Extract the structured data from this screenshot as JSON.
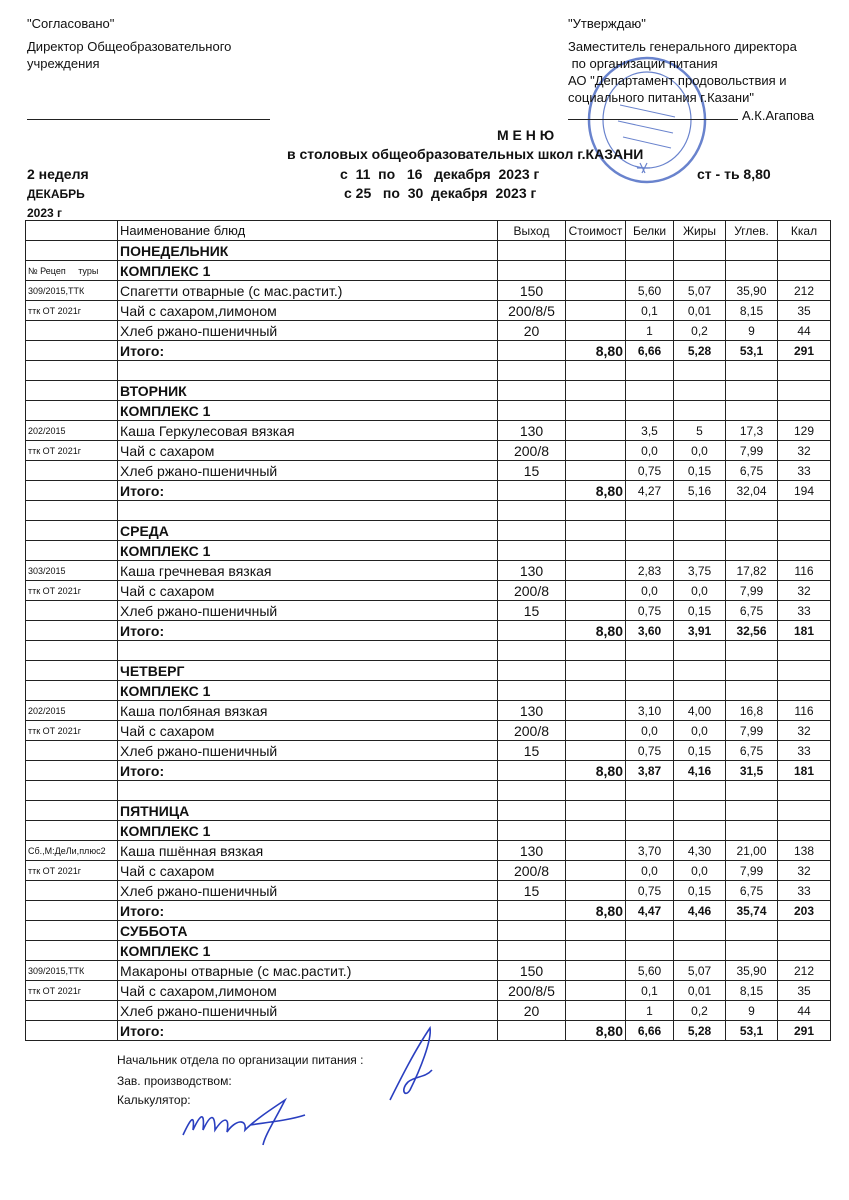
{
  "left_block": {
    "approved": "\"Согласовано\"",
    "line1": "Директор Общеобразовательного",
    "line2": "учреждения"
  },
  "right_block": {
    "approve": "\"Утверждаю\"",
    "line1": "Заместитель генерального директора",
    "line2": " по организации питания",
    "line3": "АО \"Департамент продовольствия и",
    "line4": "социального питания г.Казани\"",
    "signer": "А.К.Агапова"
  },
  "title": {
    "main": "М Е Н Ю",
    "sub": "в столовых общеобразовательных школ г.КАЗАНИ",
    "week": "2 неделя",
    "month": "ДЕКАБРЬ",
    "year": "2023 г",
    "period1": "с  11  по   16   декабря  2023 г",
    "period2": "с 25   по  30  декабря  2023 г",
    "price": "ст - ть 8,80"
  },
  "stamp": {
    "text": "ДЕПАРТАМЕНТ ПРОДОВОЛЬСТВИЯ И СОЦИАЛЬНОГО ПИТАНИЯ г.КАЗАНИ",
    "color": "#2b4fb8"
  },
  "table": {
    "headers": {
      "code": "№ Рецеп     туры",
      "name": "Наименование блюд",
      "yield": "Выход",
      "cost": "Стоимост",
      "protein": "Белки",
      "fat": "Жиры",
      "carbs": "Углев.",
      "kcal": "Ккал"
    },
    "rows": [
      {
        "type": "day",
        "name": "ПОНЕДЕЛЬНИК"
      },
      {
        "type": "complex",
        "code": "№ Рецеп     туры",
        "name": "КОМПЛЕКС 1"
      },
      {
        "type": "item",
        "code": "309/2015,ТТК",
        "name": "Спагетти отварные (с мас.растит.)",
        "yield": "150",
        "protein": "5,60",
        "fat": "5,07",
        "carbs": "35,90",
        "kcal": "212"
      },
      {
        "type": "item",
        "code": "ттк ОТ 2021г",
        "name": "Чай с сахаром,лимоном",
        "yield": "200/8/5",
        "protein": "0,1",
        "fat": "0,01",
        "carbs": "8,15",
        "kcal": "35"
      },
      {
        "type": "item",
        "name": "Хлеб ржано-пшеничный",
        "yield": "20",
        "protein": "1",
        "fat": "0,2",
        "carbs": "9",
        "kcal": "44"
      },
      {
        "type": "total",
        "name": "Итого:",
        "cost": "8,80",
        "protein": "6,66",
        "fat": "5,28",
        "carbs": "53,1",
        "kcal": "291"
      },
      {
        "type": "blank"
      },
      {
        "type": "day",
        "name": "ВТОРНИК"
      },
      {
        "type": "complex",
        "name": "КОМПЛЕКС 1"
      },
      {
        "type": "item",
        "code": "202/2015",
        "name": "Каша  Геркулесовая вязкая",
        "yield": "130",
        "protein": "3,5",
        "fat": "5",
        "carbs": "17,3",
        "kcal": "129"
      },
      {
        "type": "item",
        "code": "ттк ОТ 2021г",
        "name": "Чай с сахаром",
        "yield": "200/8",
        "protein": "0,0",
        "fat": "0,0",
        "carbs": "7,99",
        "kcal": "32"
      },
      {
        "type": "item",
        "name": "Хлеб ржано-пшеничный",
        "yield": "15",
        "protein": "0,75",
        "fat": "0,15",
        "carbs": "6,75",
        "kcal": "33"
      },
      {
        "type": "total2",
        "name": "Итого:",
        "cost": "8,80",
        "protein": "4,27",
        "fat": "5,16",
        "carbs": "32,04",
        "kcal": "194"
      },
      {
        "type": "blank"
      },
      {
        "type": "day",
        "name": "СРЕДА"
      },
      {
        "type": "complex",
        "name": "КОМПЛЕКС 1"
      },
      {
        "type": "item",
        "code": "303/2015",
        "name": "Каша гречневая вязкая",
        "yield": "130",
        "protein": "2,83",
        "fat": "3,75",
        "carbs": "17,82",
        "kcal": "116"
      },
      {
        "type": "item",
        "code": "ттк ОТ 2021г",
        "name": "Чай с сахаром",
        "yield": "200/8",
        "protein": "0,0",
        "fat": "0,0",
        "carbs": "7,99",
        "kcal": "32"
      },
      {
        "type": "item",
        "name": "Хлеб ржано-пшеничный",
        "yield": "15",
        "protein": "0,75",
        "fat": "0,15",
        "carbs": "6,75",
        "kcal": "33"
      },
      {
        "type": "total",
        "name": "Итого:",
        "cost": "8,80",
        "protein": "3,60",
        "fat": "3,91",
        "carbs": "32,56",
        "kcal": "181"
      },
      {
        "type": "blank"
      },
      {
        "type": "day",
        "name": "ЧЕТВЕРГ"
      },
      {
        "type": "complex",
        "name": "КОМПЛЕКС 1"
      },
      {
        "type": "item",
        "code": "202/2015",
        "name": "Каша  полбяная вязкая",
        "yield": "130",
        "protein": "3,10",
        "fat": "4,00",
        "carbs": "16,8",
        "kcal": "116"
      },
      {
        "type": "item",
        "code": "ттк ОТ 2021г",
        "name": "Чай с сахаром",
        "yield": "200/8",
        "protein": "0,0",
        "fat": "0,0",
        "carbs": "7,99",
        "kcal": "32"
      },
      {
        "type": "item",
        "name": "Хлеб ржано-пшеничный",
        "yield": "15",
        "protein": "0,75",
        "fat": "0,15",
        "carbs": "6,75",
        "kcal": "33"
      },
      {
        "type": "total",
        "name": "Итого:",
        "cost": "8,80",
        "protein": "3,87",
        "fat": "4,16",
        "carbs": "31,5",
        "kcal": "181"
      },
      {
        "type": "blank"
      },
      {
        "type": "day",
        "name": "ПЯТНИЦА"
      },
      {
        "type": "complex",
        "name": "КОМПЛЕКС 1"
      },
      {
        "type": "item",
        "code": "Сб.,М:ДеЛи,плюс2",
        "name": "Каша пшённая вязкая",
        "yield": "130",
        "protein": "3,70",
        "fat": "4,30",
        "carbs": "21,00",
        "kcal": "138"
      },
      {
        "type": "item",
        "code": "ттк ОТ 2021г",
        "name": "Чай с сахаром",
        "yield": "200/8",
        "protein": "0,0",
        "fat": "0,0",
        "carbs": "7,99",
        "kcal": "32"
      },
      {
        "type": "item",
        "name": "Хлеб ржано-пшеничный",
        "yield": "15",
        "protein": "0,75",
        "fat": "0,15",
        "carbs": "6,75",
        "kcal": "33"
      },
      {
        "type": "total",
        "name": "Итого:",
        "cost": "8,80",
        "protein": "4,47",
        "fat": "4,46",
        "carbs": "35,74",
        "kcal": "203"
      },
      {
        "type": "day",
        "name": "СУББОТА"
      },
      {
        "type": "complex",
        "name": "КОМПЛЕКС 1"
      },
      {
        "type": "item",
        "code": "309/2015,ТТК",
        "name": "Макароны отварные (с мас.растит.)",
        "yield": "150",
        "protein": "5,60",
        "fat": "5,07",
        "carbs": "35,90",
        "kcal": "212"
      },
      {
        "type": "item",
        "code": "ттк ОТ 2021г",
        "name": "Чай с сахаром,лимоном",
        "yield": "200/8/5",
        "protein": "0,1",
        "fat": "0,01",
        "carbs": "8,15",
        "kcal": "35"
      },
      {
        "type": "item",
        "name": "Хлеб ржано-пшеничный",
        "yield": "20",
        "protein": "1",
        "fat": "0,2",
        "carbs": "9",
        "kcal": "44"
      },
      {
        "type": "total",
        "name": "Итого:",
        "cost": "8,80",
        "protein": "6,66",
        "fat": "5,28",
        "carbs": "53,1",
        "kcal": "291"
      }
    ]
  },
  "footer": {
    "line1": "Начальник отдела по организации питания :",
    "line2": "Зав. производством:",
    "line3": "Калькулятор:"
  },
  "ink_color": "#2a3fc0"
}
